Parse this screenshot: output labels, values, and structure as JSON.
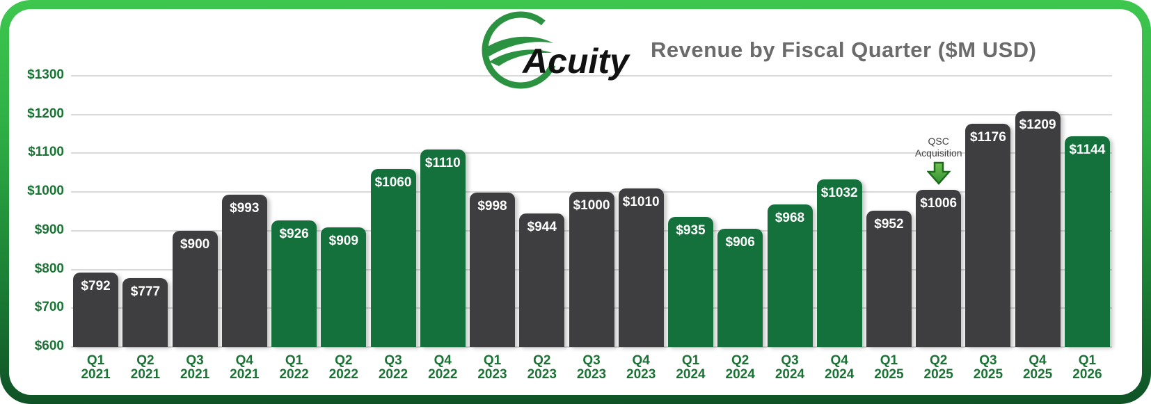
{
  "header": {
    "logo_text": "Acuity",
    "title": "Revenue by Fiscal Quarter ($M USD)"
  },
  "colors": {
    "green_bar": "#14713c",
    "dark_bar": "#3e3e40",
    "axis_green": "#1a7334",
    "gridline": "#d9d9d9",
    "title_gray": "#6b6b6b",
    "annotation_gray": "#3f3f3f",
    "logo_ring_green": "#2b9241",
    "arrow_fill_light": "#72c14f",
    "arrow_fill_dark": "#2f9132",
    "arrow_stroke": "#1c6b1e",
    "border_top": "#3ec74f",
    "border_mid1": "#2fae45",
    "border_mid2": "#1d8437",
    "border_bottom": "#0f5226"
  },
  "chart_data": {
    "type": "bar",
    "title": "Revenue by Fiscal Quarter ($M USD)",
    "xlabel": "",
    "ylabel": "",
    "ylim": [
      600,
      1300
    ],
    "ytick_step": 100,
    "ytick_labels": [
      "$600",
      "$700",
      "$800",
      "$900",
      "$1000",
      "$1100",
      "$1200",
      "$1300"
    ],
    "grid": true,
    "legend": "none",
    "categories": [
      {
        "quarter": "Q1",
        "year": "2021"
      },
      {
        "quarter": "Q2",
        "year": "2021"
      },
      {
        "quarter": "Q3",
        "year": "2021"
      },
      {
        "quarter": "Q4",
        "year": "2021"
      },
      {
        "quarter": "Q1",
        "year": "2022"
      },
      {
        "quarter": "Q2",
        "year": "2022"
      },
      {
        "quarter": "Q3",
        "year": "2022"
      },
      {
        "quarter": "Q4",
        "year": "2022"
      },
      {
        "quarter": "Q1",
        "year": "2023"
      },
      {
        "quarter": "Q2",
        "year": "2023"
      },
      {
        "quarter": "Q3",
        "year": "2023"
      },
      {
        "quarter": "Q4",
        "year": "2023"
      },
      {
        "quarter": "Q1",
        "year": "2024"
      },
      {
        "quarter": "Q2",
        "year": "2024"
      },
      {
        "quarter": "Q3",
        "year": "2024"
      },
      {
        "quarter": "Q4",
        "year": "2024"
      },
      {
        "quarter": "Q1",
        "year": "2025"
      },
      {
        "quarter": "Q2",
        "year": "2025"
      },
      {
        "quarter": "Q3",
        "year": "2025"
      },
      {
        "quarter": "Q4",
        "year": "2025"
      },
      {
        "quarter": "Q1",
        "year": "2026"
      }
    ],
    "values": [
      792,
      777,
      900,
      993,
      926,
      909,
      1060,
      1110,
      998,
      944,
      1000,
      1010,
      935,
      906,
      968,
      1032,
      952,
      1006,
      1176,
      1209,
      1144
    ],
    "bar_value_labels": [
      "$792",
      "$777",
      "$900",
      "$993",
      "$926",
      "$909",
      "$1060",
      "$1110",
      "$998",
      "$944",
      "$1000",
      "$1010",
      "$935",
      "$906",
      "$968",
      "$1032",
      "$952",
      "$1006",
      "$1176",
      "$1209",
      "$1144"
    ],
    "bar_styles": [
      "dark",
      "dark",
      "dark",
      "dark",
      "green",
      "green",
      "green",
      "green",
      "dark",
      "dark",
      "dark",
      "dark",
      "green",
      "green",
      "green",
      "green",
      "dark",
      "dark",
      "dark",
      "dark",
      "green"
    ],
    "annotation": {
      "text_lines": [
        "QSC",
        "Acquisition"
      ],
      "target_category": "Q2 2025",
      "target_index": 17
    }
  }
}
